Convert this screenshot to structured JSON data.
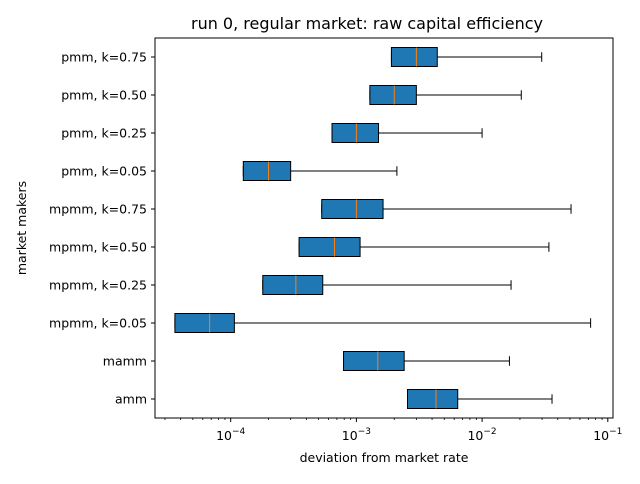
{
  "chart_data": {
    "type": "boxplot",
    "orientation": "horizontal",
    "title": "run 0, regular market: raw capital efficiency",
    "xlabel": "deviation from market rate",
    "ylabel": "market makers",
    "xscale": "log",
    "xlim": [
      2.5e-05,
      0.11
    ],
    "x_ticks": [
      {
        "value": 0.0001,
        "base": "10",
        "exp": "−4"
      },
      {
        "value": 0.001,
        "base": "10",
        "exp": "−3"
      },
      {
        "value": 0.01,
        "base": "10",
        "exp": "−2"
      },
      {
        "value": 0.1,
        "base": "10",
        "exp": "−1"
      }
    ],
    "grid": false,
    "box_color": "#1f77b4",
    "median_color": "#ff7f0e",
    "series": [
      {
        "name": "amm",
        "whislo": 0.00255,
        "q1": 0.00255,
        "median": 0.0043,
        "q3": 0.0064,
        "whishi": 0.036
      },
      {
        "name": "mamm",
        "whislo": 0.00079,
        "q1": 0.00079,
        "median": 0.00148,
        "q3": 0.0024,
        "whishi": 0.0165
      },
      {
        "name": "mpmm, k=0.05",
        "whislo": 3.6e-05,
        "q1": 3.6e-05,
        "median": 6.8e-05,
        "q3": 0.000107,
        "whishi": 0.073
      },
      {
        "name": "mpmm, k=0.25",
        "whislo": 0.00018,
        "q1": 0.00018,
        "median": 0.00033,
        "q3": 0.00054,
        "whishi": 0.017
      },
      {
        "name": "mpmm, k=0.50",
        "whislo": 0.00035,
        "q1": 0.00035,
        "median": 0.00067,
        "q3": 0.00107,
        "whishi": 0.034
      },
      {
        "name": "mpmm, k=0.75",
        "whislo": 0.00053,
        "q1": 0.00053,
        "median": 0.001,
        "q3": 0.00163,
        "whishi": 0.051
      },
      {
        "name": "pmm, k=0.05",
        "whislo": 0.000126,
        "q1": 0.000126,
        "median": 0.0002,
        "q3": 0.0003,
        "whishi": 0.0021
      },
      {
        "name": "pmm, k=0.25",
        "whislo": 0.00064,
        "q1": 0.00064,
        "median": 0.001,
        "q3": 0.0015,
        "whishi": 0.01
      },
      {
        "name": "pmm, k=0.50",
        "whislo": 0.00128,
        "q1": 0.00128,
        "median": 0.002,
        "q3": 0.003,
        "whishi": 0.0205
      },
      {
        "name": "pmm, k=0.75",
        "whislo": 0.0019,
        "q1": 0.0019,
        "median": 0.003,
        "q3": 0.0044,
        "whishi": 0.0298
      }
    ]
  }
}
